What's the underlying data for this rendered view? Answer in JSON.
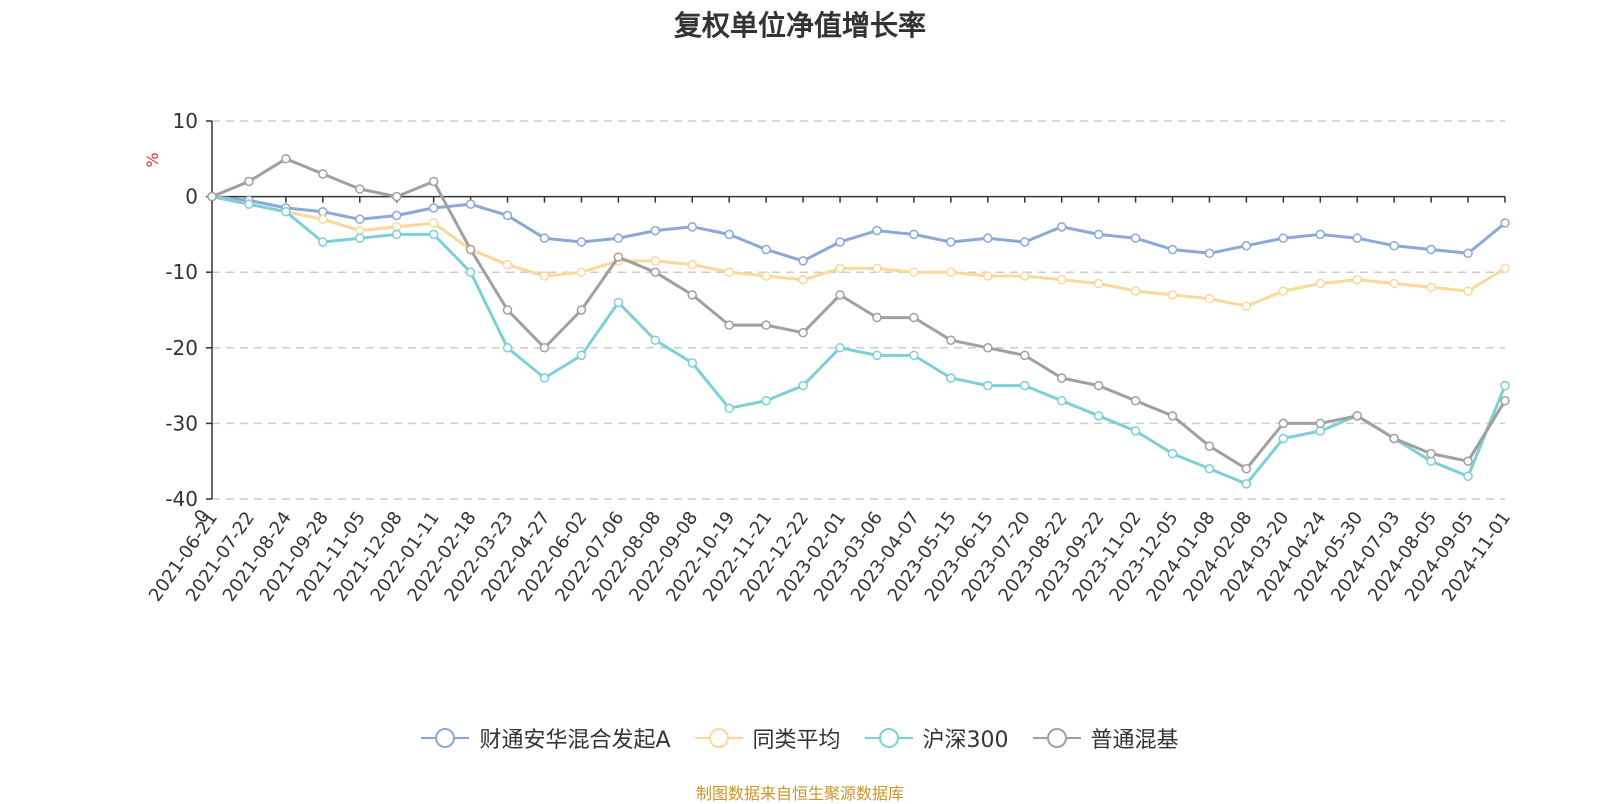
{
  "chart_data": {
    "type": "line",
    "title": "复权单位净值增长率",
    "ylabel": "%",
    "ylim": [
      -40,
      10
    ],
    "yticks": [
      10,
      0,
      -10,
      -20,
      -30,
      -40
    ],
    "grid": true,
    "legend_position": "bottom-center",
    "x_tick_labels": [
      "2021-06-21",
      "2021-07-22",
      "2021-08-24",
      "2021-09-28",
      "2021-11-05",
      "2021-12-08",
      "2022-01-11",
      "2022-02-18",
      "2022-03-23",
      "2022-04-27",
      "2022-06-02",
      "2022-07-06",
      "2022-08-08",
      "2022-09-08",
      "2022-10-19",
      "2022-11-21",
      "2022-12-22",
      "2023-02-01",
      "2023-03-06",
      "2023-04-07",
      "2023-05-15",
      "2023-06-15",
      "2023-07-20",
      "2023-08-22",
      "2023-09-22",
      "2023-11-02",
      "2023-12-05",
      "2024-01-08",
      "2024-02-08",
      "2024-03-20",
      "2024-04-24",
      "2024-05-30",
      "2024-07-03",
      "2024-08-05",
      "2024-09-05",
      "2024-11-01"
    ],
    "series": [
      {
        "name": "财通安华混合发起A",
        "color": "#8aa8d8",
        "values": [
          0,
          -0.5,
          -1.5,
          -2,
          -3,
          -2.5,
          -1.5,
          -1,
          -2.5,
          -5.5,
          -6,
          -5.5,
          -4.5,
          -4,
          -5,
          -7,
          -8.5,
          -6,
          -4.5,
          -5,
          -6,
          -5.5,
          -6,
          -4,
          -5,
          -5.5,
          -7,
          -7.5,
          -6.5,
          -5.5,
          -5,
          -5.5,
          -6.5,
          -7,
          -7.5,
          -3.5
        ]
      },
      {
        "name": "同类平均",
        "color": "#fbd89b",
        "values": [
          0,
          -1,
          -2,
          -3,
          -4.5,
          -4,
          -3.5,
          -7,
          -9,
          -10.5,
          -10,
          -8.5,
          -8.5,
          -9,
          -10,
          -10.5,
          -11,
          -9.5,
          -9.5,
          -10,
          -10,
          -10.5,
          -10.5,
          -11,
          -11.5,
          -12.5,
          -13,
          -13.5,
          -14.5,
          -12.5,
          -11.5,
          -11,
          -11.5,
          -12,
          -12.5,
          -9.5
        ]
      },
      {
        "name": "沪深300",
        "color": "#7dd0d8",
        "values": [
          0,
          -1,
          -2,
          -6,
          -5.5,
          -5,
          -5,
          -10,
          -20,
          -24,
          -21,
          -14,
          -19,
          -22,
          -28,
          -27,
          -25,
          -20,
          -21,
          -21,
          -24,
          -25,
          -25,
          -27,
          -29,
          -31,
          -34,
          -36,
          -38,
          -32,
          -31,
          -29,
          -32,
          -35,
          -37,
          -25
        ]
      },
      {
        "name": "普通混基",
        "color": "#a0a0a0",
        "values": [
          0,
          2,
          5,
          3,
          1,
          0,
          2,
          -7,
          -15,
          -20,
          -15,
          -8,
          -10,
          -13,
          -17,
          -17,
          -18,
          -13,
          -16,
          -16,
          -19,
          -20,
          -21,
          -24,
          -25,
          -27,
          -29,
          -33,
          -36,
          -30,
          -30,
          -29,
          -32,
          -34,
          -35,
          -27
        ]
      }
    ]
  },
  "legend": {
    "items": [
      "财通安华混合发起A",
      "同类平均",
      "沪深300",
      "普通混基"
    ]
  },
  "source": "制图数据来自恒生聚源数据库"
}
